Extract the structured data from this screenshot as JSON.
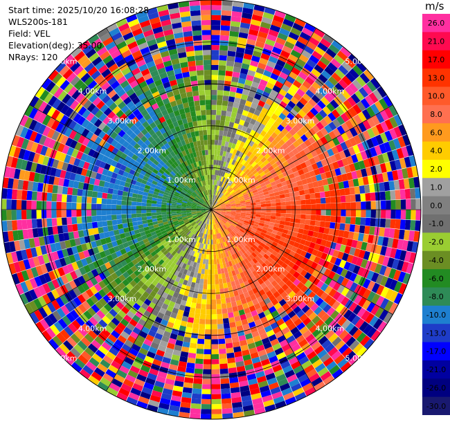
{
  "header": {
    "start_time": "Start time: 2025/10/20 16:08:28",
    "site": "WLS200s-181",
    "field": "Field: VEL",
    "elevation": "Elevation(deg): 35.00",
    "nrays": "NRays: 120"
  },
  "chart_data": {
    "type": "heatmap",
    "projection": "polar-ppi",
    "field": "VEL",
    "n_rays": 120,
    "range_rings_km": [
      1.0,
      2.0,
      3.0,
      4.0,
      5.0
    ],
    "ring_labels": [
      "1.00km",
      "2.00km",
      "3.00km",
      "4.00km",
      "5.00km"
    ],
    "max_range_km": 5.0,
    "radial_lines_deg": [
      0,
      30,
      60,
      90,
      120,
      150,
      180,
      210,
      240,
      270,
      300,
      330
    ],
    "colorbar": {
      "title": "m/s",
      "ticks": [
        "26.0",
        "21.0",
        "17.0",
        "13.0",
        "10.0",
        "8.0",
        "6.0",
        "4.0",
        "2.0",
        "1.0",
        "0.0",
        "-1.0",
        "-2.0",
        "-4.0",
        "-6.0",
        "-8.0",
        "-10.0",
        "-13.0",
        "-17.0",
        "-21.0",
        "-26.0",
        "-30.0"
      ],
      "colors": [
        "#ff2fa0",
        "#ff0a50",
        "#ff0000",
        "#ff3300",
        "#ff5a2a",
        "#ff7050",
        "#ff9a1e",
        "#ffcc00",
        "#ffff00",
        "#a0a0a0",
        "#808080",
        "#707070",
        "#9acd32",
        "#6b8e23",
        "#228b22",
        "#2e8b57",
        "#1e7fd0",
        "#1e3cc8",
        "#0000ff",
        "#0000a0",
        "#000080",
        "#191970"
      ]
    },
    "pattern": {
      "positive_azimuth_deg": 110,
      "max_inner_abs_velocity_ms": 12,
      "outer_noise_start_km": 3.3
    }
  }
}
